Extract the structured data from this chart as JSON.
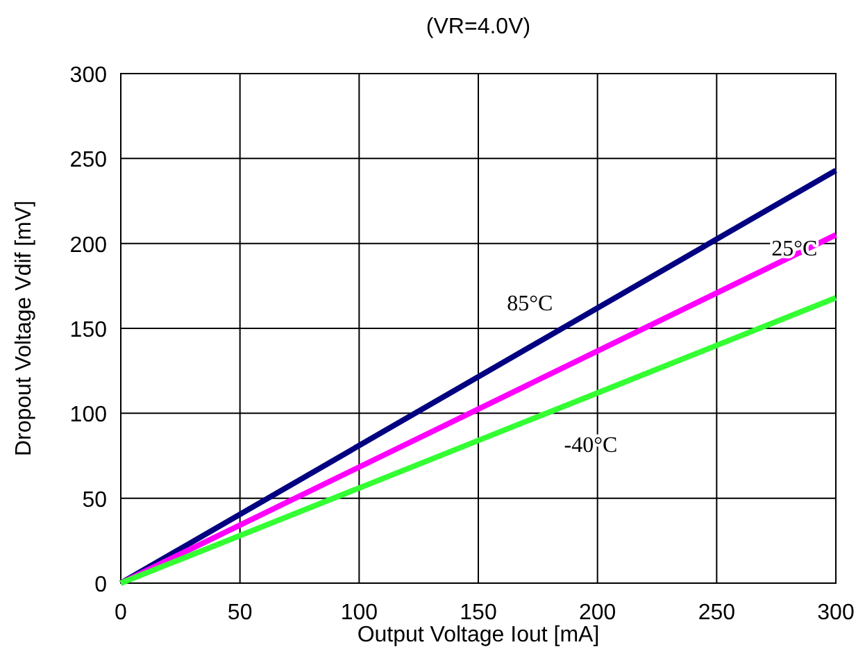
{
  "chart_data": {
    "type": "line",
    "title": "(VR=4.0V)",
    "xlabel": "Output Voltage Iout [mA]",
    "ylabel": "Dropout Voltage Vdif [mV]",
    "x": [
      0,
      300
    ],
    "series": [
      {
        "name": "85°C",
        "color": "#000080",
        "values": [
          0,
          243
        ]
      },
      {
        "name": "25°C",
        "color": "#ff00ff",
        "values": [
          0,
          205
        ]
      },
      {
        "name": "-40°C",
        "color": "#33ff33",
        "values": [
          0,
          168
        ]
      }
    ],
    "xlim": [
      0,
      300
    ],
    "ylim": [
      0,
      300
    ],
    "xticks": [
      0,
      50,
      100,
      150,
      200,
      250,
      300
    ],
    "yticks": [
      0,
      50,
      100,
      150,
      200,
      250,
      300
    ],
    "grid": true
  }
}
